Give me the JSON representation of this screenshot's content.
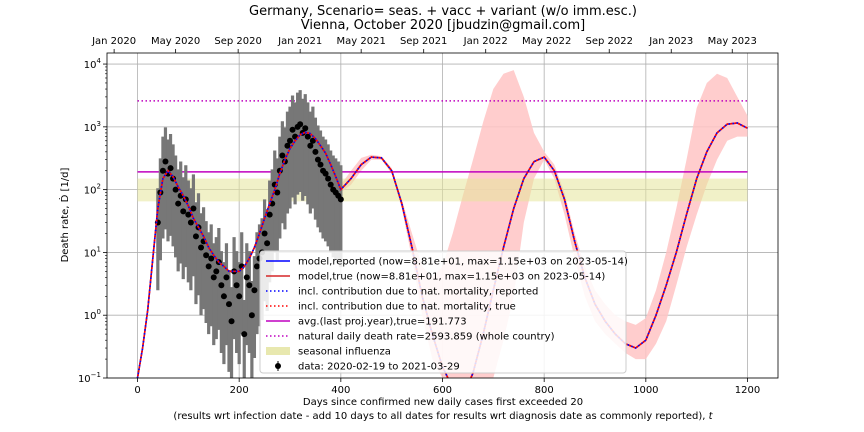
{
  "chart_data": {
    "type": "line",
    "title_line1": "Germany, Scenario= seas. + vacc + variant (w/o imm.esc.)",
    "title_line2": "Vienna, October 2020 [jbudzin@gmail.com]",
    "xlabel_line1": "Days since confirmed new daily cases first exceeded 20",
    "xlabel_line2": "(results wrt infection date - add 10 days to all dates for results wrt diagnosis date as commonly reported), ",
    "xlabel_italic": "t",
    "ylabel": "Death rate, Ḋ [1/d]",
    "xlim": [
      -60,
      1260
    ],
    "ylim": [
      0.1,
      15000
    ],
    "yscale": "log",
    "grid": true,
    "legend_position": "lower center",
    "x_ticks": [
      0,
      200,
      400,
      600,
      800,
      1000,
      1200
    ],
    "x_tick_labels": [
      "0",
      "200",
      "400",
      "600",
      "800",
      "1000",
      "1200"
    ],
    "y_ticks": [
      0.1,
      1,
      10,
      100,
      1000,
      10000
    ],
    "y_tick_labels": [
      {
        "base": "10",
        "exp": "−1"
      },
      {
        "base": "10",
        "exp": "0"
      },
      {
        "base": "10",
        "exp": "1"
      },
      {
        "base": "10",
        "exp": "2"
      },
      {
        "base": "10",
        "exp": "3"
      },
      {
        "base": "10",
        "exp": "4"
      }
    ],
    "top_axis_ticks": [
      {
        "x": -46,
        "label": "Jan 2020"
      },
      {
        "x": 75,
        "label": "May 2020"
      },
      {
        "x": 198,
        "label": "Sep 2020"
      },
      {
        "x": 320,
        "label": "Jan 2021"
      },
      {
        "x": 440,
        "label": "May 2021"
      },
      {
        "x": 563,
        "label": "Sep 2021"
      },
      {
        "x": 685,
        "label": "Jan 2022"
      },
      {
        "x": 805,
        "label": "May 2022"
      },
      {
        "x": 928,
        "label": "Sep 2022"
      },
      {
        "x": 1050,
        "label": "Jan 2023"
      },
      {
        "x": 1170,
        "label": "May 2023"
      }
    ],
    "legend": [
      {
        "label": "model,reported (now=8.81e+01, max=1.15e+03 on 2023-05-14)",
        "style": "solid",
        "color": "#0000ff"
      },
      {
        "label": "model,true (now=8.81e+01, max=1.15e+03 on 2023-05-14)",
        "style": "solid",
        "color": "#d62728"
      },
      {
        "label": "incl. contribution due to nat. mortality, reported",
        "style": "dotted",
        "color": "#0000ff"
      },
      {
        "label": "incl. contribution due to nat. mortality, true",
        "style": "dotted",
        "color": "#ff0000"
      },
      {
        "label": "avg.(last proj.year),true=191.773",
        "style": "solid",
        "color": "#bf00bf"
      },
      {
        "label": "natural daily death rate=2593.859 (whole country)",
        "style": "dotted",
        "color": "#bf00bf"
      },
      {
        "label": "seasonal influenza",
        "style": "patch",
        "color": "#d9d97a"
      },
      {
        "label": "data: 2020-02-19 to 2021-03-29",
        "style": "errorbar",
        "color": "#000000"
      }
    ],
    "reference_lines": {
      "avg_last_year": 191.773,
      "natural_death_rate": 2593.859,
      "influenza_band": [
        65,
        150
      ]
    },
    "model_curve": {
      "x": [
        0,
        10,
        20,
        30,
        40,
        50,
        60,
        70,
        80,
        90,
        100,
        110,
        120,
        130,
        140,
        150,
        160,
        170,
        180,
        190,
        200,
        210,
        220,
        230,
        240,
        250,
        260,
        270,
        280,
        290,
        300,
        310,
        320,
        330,
        340,
        350,
        360,
        370,
        380,
        390,
        400,
        420,
        440,
        460,
        480,
        500,
        520,
        540,
        560,
        580,
        600,
        620,
        640,
        660,
        680,
        700,
        720,
        740,
        760,
        780,
        800,
        820,
        840,
        860,
        880,
        900,
        920,
        940,
        960,
        980,
        1000,
        1020,
        1040,
        1060,
        1080,
        1100,
        1120,
        1140,
        1160,
        1180,
        1200
      ],
      "y": [
        0.1,
        0.3,
        1.2,
        8,
        50,
        150,
        200,
        160,
        110,
        80,
        55,
        35,
        25,
        18,
        12,
        9,
        7,
        6,
        5,
        5,
        5,
        6,
        8,
        12,
        20,
        35,
        60,
        100,
        180,
        300,
        450,
        600,
        750,
        820,
        780,
        650,
        500,
        380,
        250,
        160,
        100,
        150,
        250,
        330,
        320,
        200,
        60,
        12,
        2,
        0.5,
        0.15,
        0.07,
        0.05,
        0.12,
        0.5,
        2.5,
        12,
        50,
        150,
        280,
        330,
        200,
        70,
        15,
        4,
        1.5,
        0.8,
        0.5,
        0.35,
        0.3,
        0.4,
        1,
        3,
        10,
        40,
        150,
        400,
        800,
        1100,
        1150,
        950
      ]
    },
    "uncertainty_band": {
      "x": [
        400,
        420,
        440,
        460,
        480,
        500,
        520,
        540,
        560,
        580,
        600,
        620,
        640,
        660,
        680,
        700,
        720,
        740,
        760,
        780,
        800,
        820,
        840,
        860,
        880,
        900,
        920,
        940,
        960,
        980,
        1000,
        1020,
        1040,
        1060,
        1080,
        1100,
        1120,
        1140,
        1160,
        1180,
        1200
      ],
      "upper": [
        120,
        200,
        320,
        360,
        340,
        220,
        70,
        20,
        6,
        4,
        6,
        20,
        80,
        300,
        1200,
        4000,
        7000,
        8000,
        3000,
        800,
        400,
        250,
        90,
        20,
        6,
        2.5,
        1.5,
        1,
        0.8,
        0.7,
        0.9,
        2.5,
        10,
        50,
        300,
        2000,
        5000,
        7000,
        6000,
        3000,
        1500
      ],
      "lower": [
        90,
        120,
        200,
        300,
        300,
        180,
        50,
        8,
        1,
        0.2,
        0.1,
        0.1,
        0.1,
        0.1,
        0.1,
        0.1,
        0.4,
        2,
        30,
        150,
        300,
        150,
        40,
        8,
        2,
        0.8,
        0.5,
        0.35,
        0.25,
        0.2,
        0.2,
        0.35,
        0.8,
        3,
        12,
        40,
        120,
        300,
        600,
        700,
        700
      ]
    },
    "data_points": {
      "x": [
        40,
        45,
        50,
        55,
        60,
        65,
        70,
        75,
        80,
        85,
        90,
        95,
        100,
        105,
        110,
        115,
        120,
        125,
        130,
        135,
        140,
        145,
        150,
        155,
        160,
        165,
        170,
        175,
        180,
        185,
        190,
        195,
        200,
        205,
        210,
        215,
        220,
        225,
        230,
        235,
        240,
        245,
        250,
        255,
        260,
        265,
        270,
        275,
        280,
        285,
        290,
        295,
        300,
        305,
        310,
        315,
        320,
        325,
        330,
        335,
        340,
        345,
        350,
        355,
        360,
        365,
        370,
        375,
        380,
        385,
        390,
        395,
        400
      ],
      "y": [
        30,
        90,
        200,
        280,
        180,
        220,
        150,
        100,
        60,
        80,
        45,
        70,
        40,
        30,
        50,
        18,
        25,
        12,
        15,
        9,
        6,
        8,
        4,
        5,
        7,
        3,
        2,
        4,
        1.5,
        0.8,
        5,
        3,
        2,
        6,
        0.5,
        4,
        3,
        1,
        2.5,
        6,
        8,
        10,
        20,
        14,
        40,
        60,
        120,
        90,
        200,
        350,
        280,
        500,
        600,
        900,
        700,
        1000,
        1100,
        800,
        950,
        700,
        500,
        600,
        400,
        300,
        250,
        200,
        180,
        150,
        120,
        100,
        90,
        80,
        70
      ]
    }
  }
}
